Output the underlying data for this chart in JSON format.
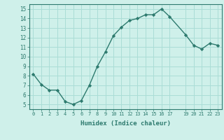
{
  "x": [
    0,
    1,
    2,
    3,
    4,
    5,
    6,
    7,
    8,
    9,
    10,
    11,
    12,
    13,
    14,
    15,
    16,
    17,
    19,
    20,
    21,
    22,
    23
  ],
  "y": [
    8.2,
    7.1,
    6.5,
    6.5,
    5.3,
    5.0,
    5.4,
    7.0,
    9.0,
    10.5,
    12.2,
    13.1,
    13.8,
    14.0,
    14.4,
    14.4,
    15.0,
    14.2,
    12.3,
    11.2,
    10.8,
    11.4,
    11.2
  ],
  "xlim": [
    -0.5,
    23.5
  ],
  "ylim": [
    4.5,
    15.5
  ],
  "yticks": [
    5,
    6,
    7,
    8,
    9,
    10,
    11,
    12,
    13,
    14,
    15
  ],
  "xticks": [
    0,
    1,
    2,
    3,
    4,
    5,
    6,
    7,
    8,
    9,
    10,
    11,
    12,
    13,
    14,
    15,
    16,
    17,
    19,
    20,
    21,
    22,
    23
  ],
  "xlabel": "Humidex (Indice chaleur)",
  "line_color": "#2d7a6e",
  "marker": "D",
  "marker_size": 2.2,
  "bg_color": "#cff0ea",
  "grid_color": "#aaddd6",
  "axis_color": "#2d7a6e"
}
